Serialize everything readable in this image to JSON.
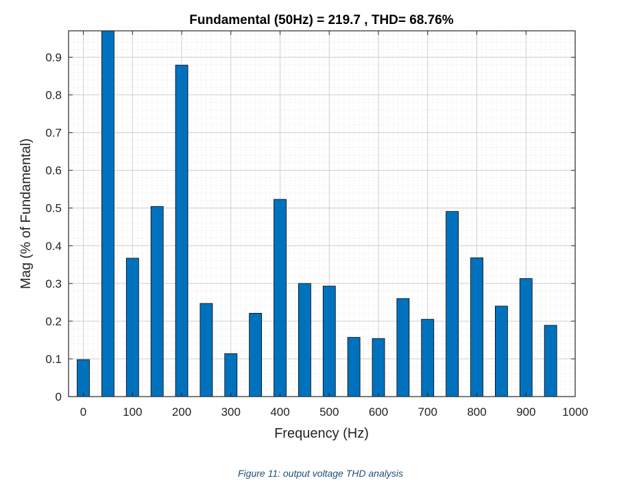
{
  "chart_data": {
    "type": "bar",
    "title": "Fundamental (50Hz) = 219.7 , THD= 68.76%",
    "xlabel": "Frequency (Hz)",
    "ylabel": "Mag (% of Fundamental)",
    "xlim": [
      -30,
      1000
    ],
    "ylim": [
      0,
      0.97
    ],
    "xticks": [
      0,
      100,
      200,
      300,
      400,
      500,
      600,
      700,
      800,
      900,
      1000
    ],
    "yticks": [
      0,
      0.1,
      0.2,
      0.3,
      0.4,
      0.5,
      0.6,
      0.7,
      0.8,
      0.9
    ],
    "ytick_labels": [
      "0",
      "0.1",
      "0.2",
      "0.3",
      "0.4",
      "0.5",
      "0.6",
      "0.7",
      "0.8",
      "0.9"
    ],
    "x": [
      0,
      50,
      100,
      150,
      200,
      250,
      300,
      350,
      400,
      450,
      500,
      550,
      600,
      650,
      700,
      750,
      800,
      850,
      900,
      950
    ],
    "values": [
      0.098,
      1.0,
      0.367,
      0.504,
      0.879,
      0.247,
      0.114,
      0.221,
      0.523,
      0.3,
      0.293,
      0.157,
      0.154,
      0.26,
      0.205,
      0.491,
      0.368,
      0.24,
      0.313,
      0.189
    ],
    "grid": true,
    "minor_grid": true,
    "bar_color": "#0072BD",
    "edge_color": "#000000"
  },
  "caption": "Figure 11: output voltage THD analysis"
}
